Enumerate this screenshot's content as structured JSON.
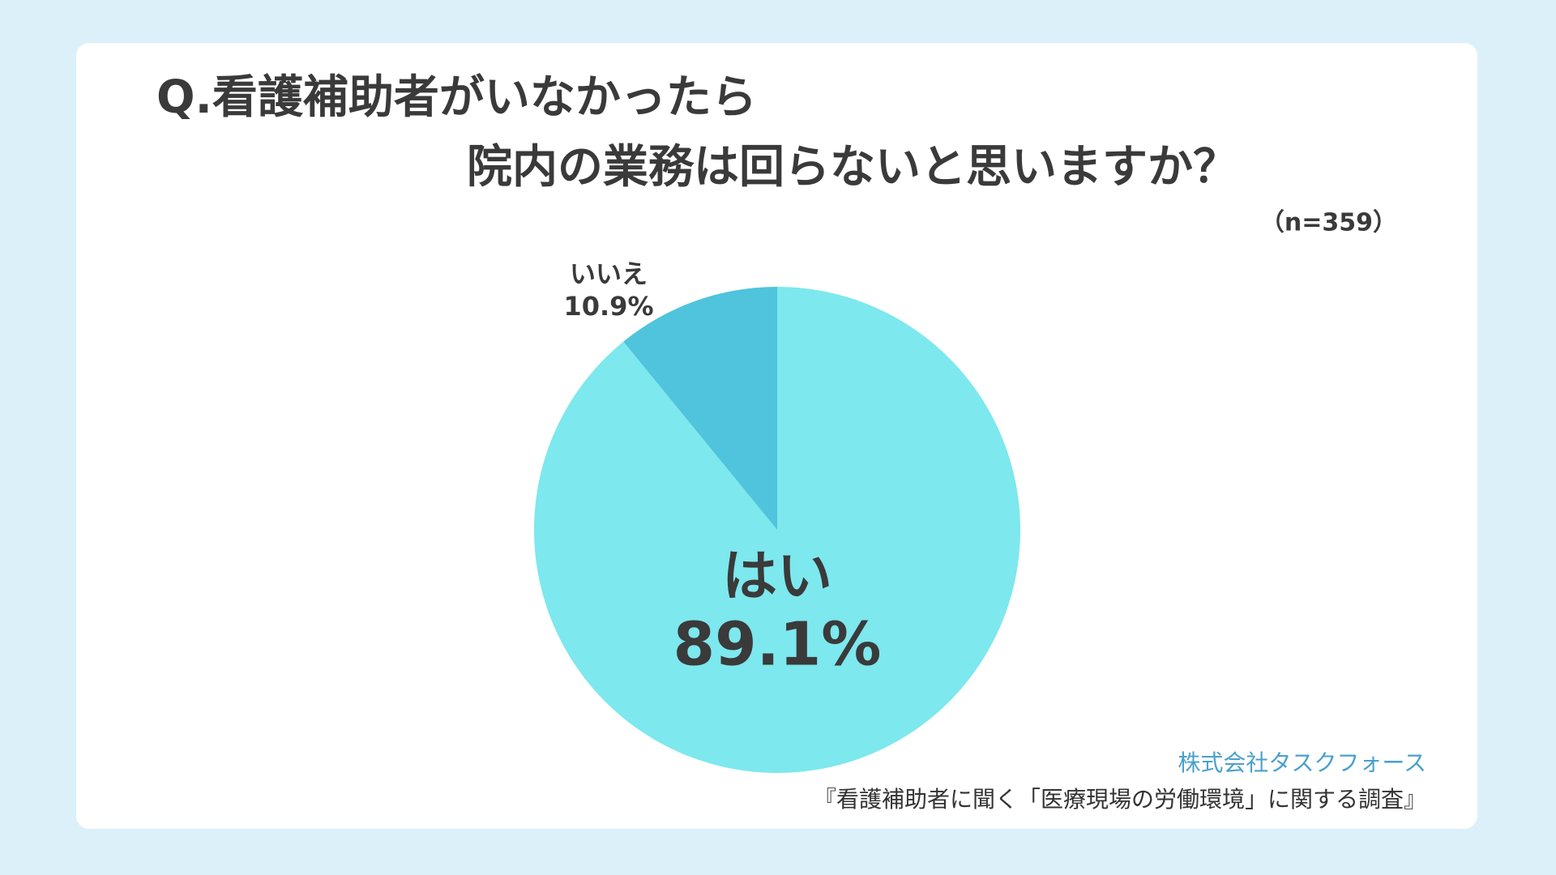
{
  "chart_data": {
    "type": "pie",
    "title": [
      "Q.看護補助者がいなかったら",
      "院内の業務は回らないと思いますか？"
    ],
    "subtitle": "（n=359）",
    "categories": [
      "はい",
      "いいえ"
    ],
    "values": [
      89.1,
      10.9
    ],
    "value_labels": [
      "89.1%",
      "10.9%"
    ],
    "colors": [
      "#7de8ee",
      "#4fc4dc"
    ],
    "annotations": [
      "株式会社タスクフォース",
      "『看護補助者に聞く「医療現場の労働環境」に関する調査』"
    ]
  }
}
